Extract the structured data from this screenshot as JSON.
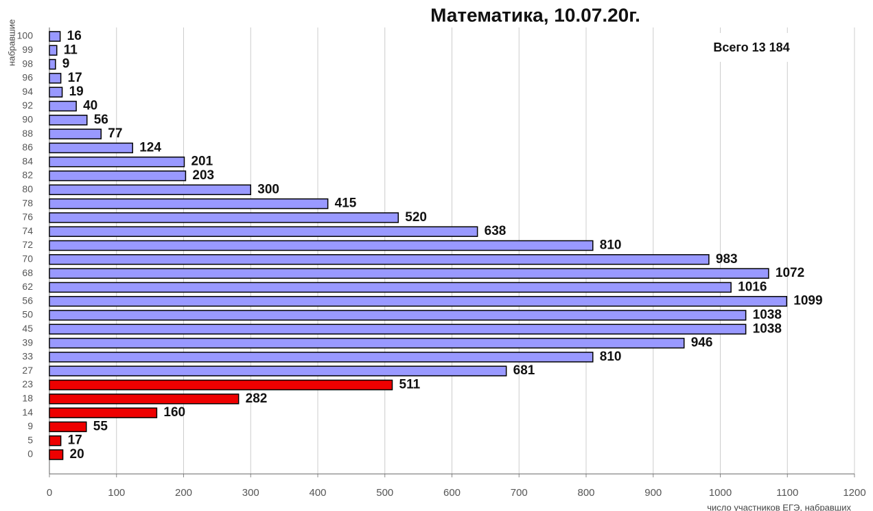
{
  "chart_data": {
    "type": "hbar",
    "title": "Математика, 10.07.20г.",
    "y_label": "набравшие",
    "x_label": "число участников ЕГЭ, набравших",
    "annotation": "Всего 13 184",
    "categories": [
      "0",
      "5",
      "9",
      "14",
      "18",
      "23",
      "27",
      "33",
      "39",
      "45",
      "50",
      "56",
      "62",
      "68",
      "70",
      "72",
      "74",
      "76",
      "78",
      "80",
      "82",
      "84",
      "86",
      "88",
      "90",
      "92",
      "94",
      "96",
      "98",
      "99",
      "100"
    ],
    "values": [
      20,
      17,
      55,
      160,
      282,
      511,
      681,
      810,
      946,
      1038,
      1038,
      1099,
      1016,
      1072,
      983,
      810,
      638,
      520,
      415,
      300,
      203,
      201,
      124,
      77,
      56,
      40,
      19,
      17,
      9,
      11,
      16
    ],
    "colors": [
      "#ee0000",
      "#ee0000",
      "#ee0000",
      "#ee0000",
      "#ee0000",
      "#ee0000",
      "#9999ff",
      "#9999ff",
      "#9999ff",
      "#9999ff",
      "#9999ff",
      "#9999ff",
      "#9999ff",
      "#9999ff",
      "#9999ff",
      "#9999ff",
      "#9999ff",
      "#9999ff",
      "#9999ff",
      "#9999ff",
      "#9999ff",
      "#9999ff",
      "#9999ff",
      "#9999ff",
      "#9999ff",
      "#9999ff",
      "#9999ff",
      "#9999ff",
      "#9999ff",
      "#9999ff",
      "#9999ff"
    ],
    "xlim": [
      0,
      1200
    ],
    "xticks": [
      0,
      100,
      200,
      300,
      400,
      500,
      600,
      700,
      800,
      900,
      1000,
      1100,
      1200
    ],
    "grid": true
  }
}
